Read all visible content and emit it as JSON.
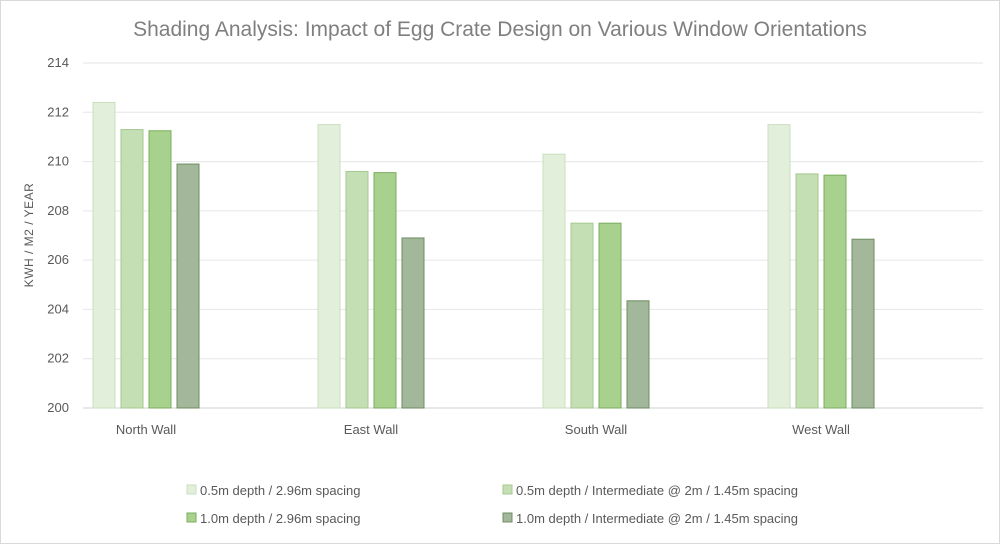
{
  "chart_data": {
    "type": "bar",
    "title": "Shading Analysis: Impact of Egg Crate Design on Various Window Orientations",
    "xlabel": "",
    "ylabel": "KWH / M2 / YEAR",
    "ylim": [
      200,
      214
    ],
    "yticks": [
      200,
      202,
      204,
      206,
      208,
      210,
      212,
      214
    ],
    "grid": true,
    "legend_position": "bottom",
    "categories": [
      "North Wall",
      "East Wall",
      "South Wall",
      "West Wall"
    ],
    "series": [
      {
        "name": "0.5m depth / 2.96m spacing",
        "color": "#e2efda",
        "stroke": "#c9dfbf",
        "values": [
          212.4,
          211.5,
          210.3,
          211.5
        ]
      },
      {
        "name": "0.5m depth / Intermediate @ 2m / 1.45m spacing",
        "color": "#c4dfb4",
        "stroke": "#a3c98f",
        "values": [
          211.3,
          209.6,
          207.5,
          209.5
        ]
      },
      {
        "name": "1.0m depth / 2.96m spacing",
        "color": "#a9d18e",
        "stroke": "#78ad5c",
        "values": [
          211.25,
          209.55,
          207.5,
          209.45
        ]
      },
      {
        "name": "1.0m depth / Intermediate @ 2m / 1.45m spacing",
        "color": "#a3b89a",
        "stroke": "#6f8c62",
        "values": [
          209.9,
          206.9,
          204.35,
          206.85
        ]
      }
    ]
  }
}
